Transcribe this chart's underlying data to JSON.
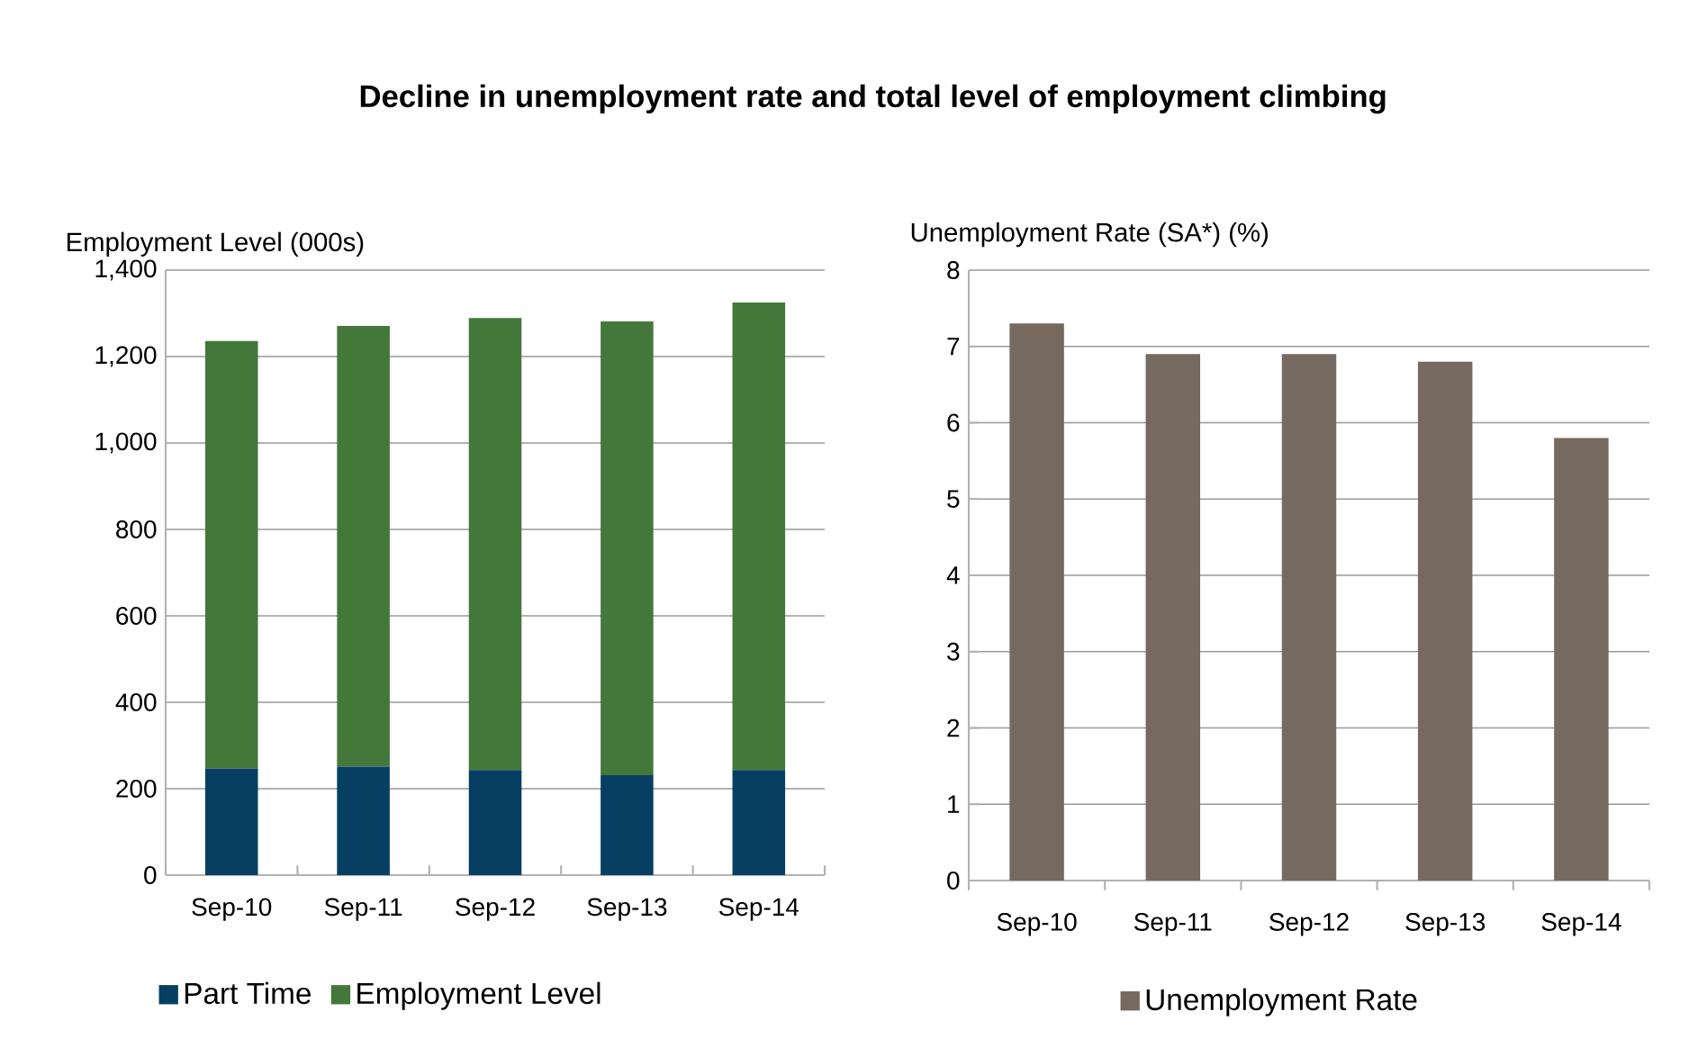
{
  "chart_data": [
    {
      "type": "bar",
      "title": "Decline in unemployment rate and total level of employment climbing",
      "ylabel": "Employment Level (000s)",
      "stacked": true,
      "categories": [
        "Sep-10",
        "Sep-11",
        "Sep-12",
        "Sep-13",
        "Sep-14"
      ],
      "series": [
        {
          "name": "Part Time",
          "color": "#073f63",
          "values": [
            247,
            251,
            243,
            231,
            243
          ]
        },
        {
          "name": "Employment Level",
          "color": "#43783a",
          "values": [
            989,
            1020,
            1046,
            1050,
            1082
          ]
        }
      ],
      "ylim": [
        0,
        1400
      ],
      "yticks": [
        0,
        200,
        400,
        600,
        800,
        {
          "value": 1000,
          "label": "1,000"
        },
        {
          "value": 1200,
          "label": "1,200"
        },
        {
          "value": 1400,
          "label": "1,400"
        }
      ],
      "grid": "y",
      "legend": "bottom"
    },
    {
      "type": "bar",
      "ylabel": "Unemployment Rate (SA*) (%)",
      "categories": [
        "Sep-10",
        "Sep-11",
        "Sep-12",
        "Sep-13",
        "Sep-14"
      ],
      "series": [
        {
          "name": "Unemployment Rate",
          "color": "#766a60",
          "values": [
            7.3,
            6.9,
            6.9,
            6.8,
            5.8
          ]
        }
      ],
      "ylim": [
        0,
        8
      ],
      "yticks": [
        0,
        1,
        2,
        3,
        4,
        5,
        6,
        7,
        8
      ],
      "grid": "y",
      "legend": "bottom"
    }
  ]
}
